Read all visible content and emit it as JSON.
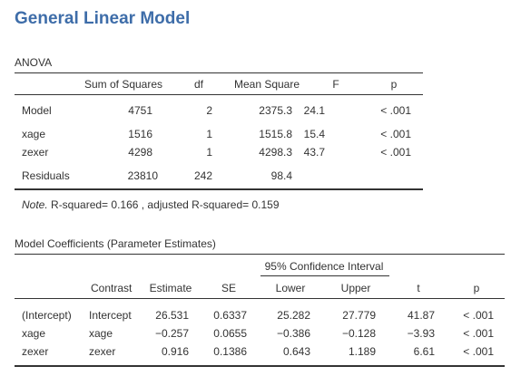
{
  "header": {
    "title": "General Linear Model"
  },
  "anova": {
    "caption": "ANOVA",
    "columns": [
      "",
      "Sum of Squares",
      "df",
      "Mean Square",
      "F",
      "p"
    ],
    "rows": [
      [
        "Model",
        "4751",
        "2",
        "2375.3",
        "24.1",
        "< .001"
      ],
      [
        "xage",
        "1516",
        "1",
        "1515.8",
        "15.4",
        "< .001"
      ],
      [
        "zexer",
        "4298",
        "1",
        "4298.3",
        "43.7",
        "< .001"
      ],
      [
        "Residuals",
        "23810",
        "242",
        "98.4",
        "",
        ""
      ]
    ],
    "note_label": "Note.",
    "note_text": " R-squared= 0.166 , adjusted R-squared= 0.159"
  },
  "coefficients": {
    "caption": "Model Coefficients (Parameter Estimates)",
    "ci_header": "95% Confidence Interval",
    "columns": [
      "",
      "Contrast",
      "Estimate",
      "SE",
      "Lower",
      "Upper",
      "t",
      "p"
    ],
    "rows": [
      [
        "(Intercept)",
        "Intercept",
        "26.531",
        "0.6337",
        "25.282",
        "27.779",
        "41.87",
        "< .001"
      ],
      [
        "xage",
        "xage",
        "−0.257",
        "0.0655",
        "−0.386",
        "−0.128",
        "−3.93",
        "< .001"
      ],
      [
        "zexer",
        "zexer",
        "0.916",
        "0.1386",
        "0.643",
        "1.189",
        "6.61",
        "< .001"
      ]
    ]
  }
}
